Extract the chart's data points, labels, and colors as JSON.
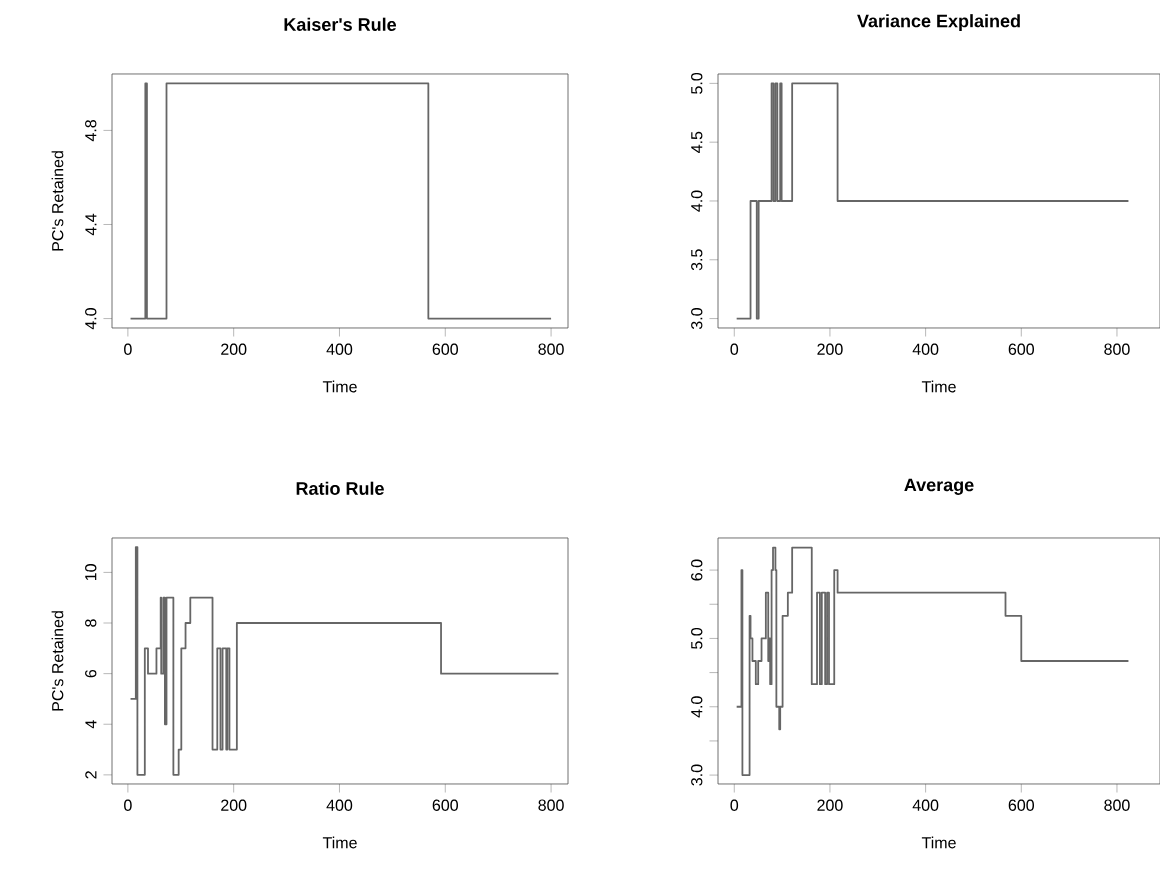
{
  "chart_data": [
    {
      "type": "step",
      "title": "Kaiser's Rule",
      "xlabel": "Time",
      "ylabel": "PC's Retained",
      "color": "#666666",
      "xlim": [
        -30,
        832
      ],
      "xticks": [
        0,
        200,
        400,
        600,
        800
      ],
      "ylim": [
        3.96,
        5.04
      ],
      "yticks": [
        {
          "value": 4.0,
          "label": "4.0"
        },
        {
          "value": 4.4,
          "label": "4.4"
        },
        {
          "value": 4.8,
          "label": "4.8"
        }
      ],
      "x": [
        5,
        33,
        36,
        73,
        568,
        800
      ],
      "values": [
        4,
        5,
        4,
        5,
        4,
        4
      ]
    },
    {
      "type": "step",
      "title": "Variance Explained",
      "xlabel": "Time",
      "color": "#666666",
      "xlim": [
        -34,
        890
      ],
      "xticks": [
        0,
        200,
        400,
        600,
        800
      ],
      "ylim": [
        2.92,
        5.08
      ],
      "yticks": [
        {
          "value": 3.0,
          "label": "3.0"
        },
        {
          "value": 3.5,
          "label": "3.5"
        },
        {
          "value": 4.0,
          "label": "4.0"
        },
        {
          "value": 4.5,
          "label": "4.5"
        },
        {
          "value": 5.0,
          "label": "5.0"
        }
      ],
      "x": [
        5,
        34,
        47,
        51,
        78,
        82,
        86,
        90,
        96,
        99,
        121,
        216,
        824
      ],
      "values": [
        3,
        4,
        3,
        4,
        5,
        4,
        5,
        4,
        5,
        4,
        5,
        4,
        4
      ]
    },
    {
      "type": "step",
      "title": "Ratio Rule",
      "xlabel": "Time",
      "ylabel": "PC's Retained",
      "color": "#666666",
      "xlim": [
        -30,
        832
      ],
      "xticks": [
        0,
        200,
        400,
        600,
        800
      ],
      "ylim": [
        1.64,
        11.36
      ],
      "yticks": [
        2,
        4,
        6,
        8,
        10
      ],
      "x": [
        5,
        15,
        18,
        32,
        38,
        54,
        62,
        63,
        67,
        70,
        73,
        76,
        86,
        96,
        101,
        109,
        118,
        160,
        169,
        175,
        179,
        186,
        188,
        192,
        206,
        592,
        814
      ],
      "values": [
        5,
        11,
        2,
        7,
        6,
        7,
        9,
        6,
        9,
        4,
        9,
        9,
        2,
        3,
        7,
        8,
        9,
        3,
        7,
        3,
        7,
        3,
        7,
        3,
        8,
        6,
        6
      ]
    },
    {
      "type": "step",
      "title": "Average",
      "xlabel": "Time",
      "color": "#666666",
      "xlim": [
        -34,
        890
      ],
      "xticks": [
        0,
        200,
        400,
        600,
        800
      ],
      "ylim": [
        2.87,
        6.47
      ],
      "yticks": [
        {
          "value": 3.0,
          "label": "3.0"
        },
        {
          "value": 3.5,
          "label": null
        },
        {
          "value": 4.0,
          "label": "4.0"
        },
        {
          "value": 4.5,
          "label": null
        },
        {
          "value": 5.0,
          "label": "5.0"
        },
        {
          "value": 5.5,
          "label": null
        },
        {
          "value": 6.0,
          "label": "6.0"
        }
      ],
      "x": [
        5,
        15,
        17,
        32,
        34,
        38,
        45,
        50,
        57,
        66,
        71,
        73,
        75,
        78,
        81,
        86,
        88,
        94,
        96,
        101,
        112,
        121,
        162,
        173,
        179,
        183,
        190,
        194,
        198,
        209,
        216,
        567,
        600,
        824
      ],
      "values": [
        4,
        6,
        3,
        5.33,
        5,
        4.67,
        4.33,
        4.67,
        5,
        5.67,
        4.67,
        5,
        4.33,
        6,
        6.33,
        6,
        4,
        3.67,
        4,
        5.33,
        5.67,
        6.33,
        4.33,
        5.67,
        4.33,
        5.67,
        4.33,
        5.67,
        4.33,
        6,
        5.67,
        5.33,
        4.67,
        4.67
      ]
    }
  ]
}
